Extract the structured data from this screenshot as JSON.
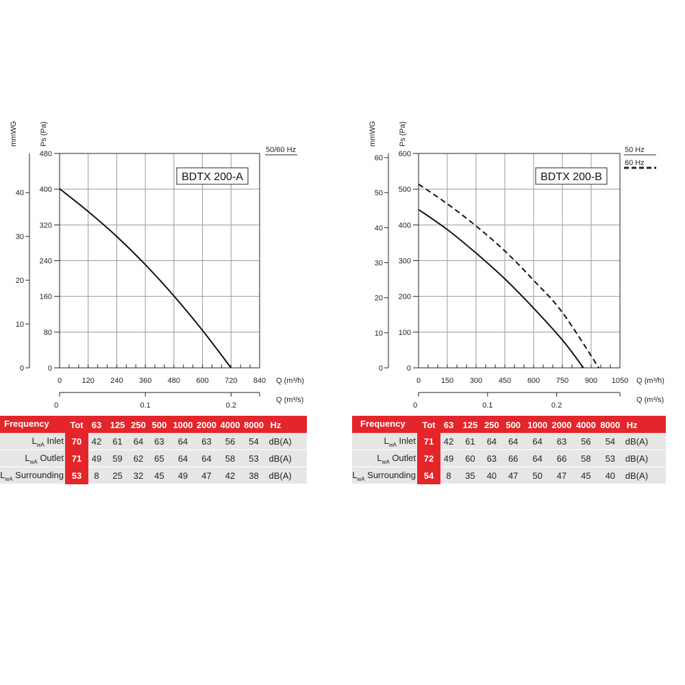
{
  "chart_data": [
    {
      "type": "line",
      "title": "BDTX 200-A",
      "frequency_legend": [
        "50/60 Hz"
      ],
      "ylabel": "Ps (Pa)",
      "ylabel2": "mmWG",
      "xlabel": "Q (m³/h)",
      "xlabel2": "Q (m³/s)",
      "xlim": [
        0,
        840
      ],
      "ylim": [
        0,
        480
      ],
      "y2lim": [
        0,
        48.94
      ],
      "x2lim": [
        0,
        0.2333
      ],
      "grid": true,
      "x_ticks": [
        "0",
        "120",
        "240",
        "360",
        "480",
        "600",
        "720",
        "840"
      ],
      "y_ticks": [
        "0",
        "80",
        "160",
        "240",
        "320",
        "400",
        "480"
      ],
      "y2_ticks": [
        "0",
        "10",
        "20",
        "30",
        "40"
      ],
      "x2_ticks": [
        "0",
        "0.1",
        "0.2"
      ],
      "series": [
        {
          "name": "50/60 Hz",
          "style": "solid",
          "x": [
            0,
            120,
            240,
            360,
            480,
            600,
            720
          ],
          "y": [
            401,
            350,
            294,
            231,
            161,
            84,
            0
          ]
        }
      ]
    },
    {
      "type": "line",
      "title": "BDTX 200-B",
      "frequency_legend": [
        "50 Hz",
        "60 Hz"
      ],
      "ylabel": "Ps (Pa)",
      "ylabel2": "mmWG",
      "xlabel": "Q (m³/h)",
      "xlabel2": "Q (m³/s)",
      "xlim": [
        0,
        1050
      ],
      "ylim": [
        0,
        600
      ],
      "y2lim": [
        0,
        61.18
      ],
      "x2lim": [
        0,
        0.2917
      ],
      "grid": true,
      "x_ticks": [
        "0",
        "150",
        "300",
        "450",
        "600",
        "750",
        "900",
        "1050"
      ],
      "y_ticks": [
        "0",
        "100",
        "200",
        "300",
        "400",
        "500",
        "600"
      ],
      "y2_ticks": [
        "0",
        "10",
        "20",
        "30",
        "40",
        "50",
        "60"
      ],
      "x2_ticks": [
        "0",
        "0.1",
        "0.2"
      ],
      "series": [
        {
          "name": "50 Hz",
          "style": "solid",
          "x": [
            0,
            150,
            300,
            450,
            600,
            750,
            860
          ],
          "y": [
            443,
            387,
            321,
            249,
            167,
            78,
            0
          ]
        },
        {
          "name": "60 Hz",
          "style": "dashed",
          "x": [
            0,
            150,
            300,
            450,
            600,
            750,
            940
          ],
          "y": [
            514,
            459,
            397,
            327,
            245,
            155,
            0
          ]
        }
      ]
    }
  ],
  "tables": [
    {
      "header": [
        "Frequency",
        "Tot",
        "63",
        "125",
        "250",
        "500",
        "1000",
        "2000",
        "4000",
        "8000",
        "Hz"
      ],
      "rows": [
        {
          "label": "L",
          "sub": "wA",
          "suffix": "Inlet",
          "tot": "70",
          "values": [
            "42",
            "61",
            "64",
            "63",
            "64",
            "63",
            "56",
            "54"
          ],
          "unit": "dB(A)"
        },
        {
          "label": "L",
          "sub": "wA",
          "suffix": "Outlet",
          "tot": "71",
          "values": [
            "49",
            "59",
            "62",
            "65",
            "64",
            "64",
            "58",
            "53"
          ],
          "unit": "dB(A)"
        },
        {
          "label": "L",
          "sub": "wA",
          "suffix": "Surrounding",
          "tot": "53",
          "values": [
            "8",
            "25",
            "32",
            "45",
            "49",
            "47",
            "42",
            "38"
          ],
          "unit": "dB(A)"
        }
      ]
    },
    {
      "header": [
        "Frequency",
        "Tot",
        "63",
        "125",
        "250",
        "500",
        "1000",
        "2000",
        "4000",
        "8000",
        "Hz"
      ],
      "rows": [
        {
          "label": "L",
          "sub": "wA",
          "suffix": "Inlet",
          "tot": "71",
          "values": [
            "42",
            "61",
            "64",
            "64",
            "64",
            "63",
            "56",
            "54"
          ],
          "unit": "dB(A)"
        },
        {
          "label": "L",
          "sub": "wA",
          "suffix": "Outlet",
          "tot": "72",
          "values": [
            "49",
            "60",
            "63",
            "66",
            "64",
            "66",
            "58",
            "53"
          ],
          "unit": "dB(A)"
        },
        {
          "label": "L",
          "sub": "wA",
          "suffix": "Surrounding",
          "tot": "54",
          "values": [
            "8",
            "35",
            "40",
            "47",
            "50",
            "47",
            "45",
            "40"
          ],
          "unit": "dB(A)"
        }
      ]
    }
  ],
  "colors": {
    "accent": "#e3262b",
    "grid": "#999999",
    "row_bg": "#e6e6e6",
    "curve": "#111111"
  }
}
